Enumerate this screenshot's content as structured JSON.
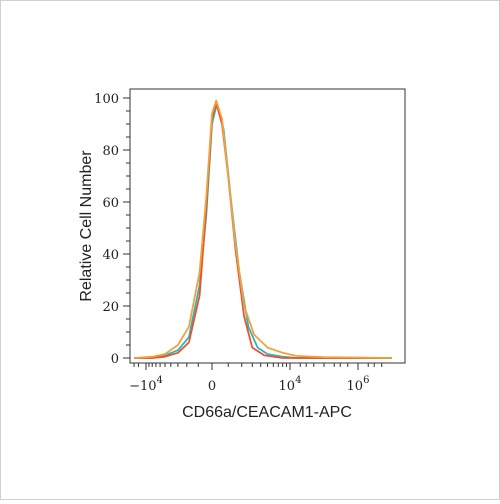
{
  "chart_data": {
    "type": "line",
    "title": "",
    "xlabel": "CD66a/CEACAM1-APC",
    "ylabel": "Relative Cell Number",
    "x_scale": "biexponential",
    "xlim": [
      -30000,
      10000000
    ],
    "ylim": [
      0,
      100
    ],
    "grid": false,
    "legend": "none",
    "x_ticks": [
      {
        "value": -10000,
        "base": "−10",
        "exp": "4"
      },
      {
        "value": 0,
        "base": "0",
        "exp": ""
      },
      {
        "value": 10000,
        "base": "10",
        "exp": "4"
      },
      {
        "value": 1000000,
        "base": "10",
        "exp": "6"
      }
    ],
    "y_ticks": [
      0,
      20,
      40,
      60,
      80,
      100
    ],
    "series": [
      {
        "color": "#2bb3c9",
        "points": [
          [
            -30000,
            0
          ],
          [
            -8000,
            0
          ],
          [
            -5000,
            1
          ],
          [
            -3000,
            3
          ],
          [
            -1800,
            8
          ],
          [
            -900,
            28
          ],
          [
            -400,
            55
          ],
          [
            0,
            90
          ],
          [
            300,
            98
          ],
          [
            700,
            88
          ],
          [
            1200,
            60
          ],
          [
            1800,
            33
          ],
          [
            2600,
            12
          ],
          [
            3600,
            4
          ],
          [
            5000,
            1.5
          ],
          [
            8000,
            0.5
          ],
          [
            15000,
            0
          ],
          [
            100000,
            0
          ],
          [
            10000000,
            0
          ]
        ]
      },
      {
        "color": "#e4572e",
        "points": [
          [
            -30000,
            0
          ],
          [
            -8000,
            0
          ],
          [
            -5000,
            0.5
          ],
          [
            -3000,
            2
          ],
          [
            -1800,
            6
          ],
          [
            -900,
            24
          ],
          [
            -400,
            58
          ],
          [
            0,
            92
          ],
          [
            250,
            98
          ],
          [
            600,
            90
          ],
          [
            1000,
            70
          ],
          [
            1500,
            42
          ],
          [
            2200,
            16
          ],
          [
            3000,
            4
          ],
          [
            4500,
            1
          ],
          [
            8000,
            0
          ],
          [
            100000,
            0
          ],
          [
            10000000,
            0
          ]
        ]
      },
      {
        "color": "#f2a23a",
        "points": [
          [
            -30000,
            0
          ],
          [
            -8000,
            0.5
          ],
          [
            -5000,
            1.5
          ],
          [
            -3000,
            5
          ],
          [
            -1800,
            12
          ],
          [
            -900,
            33
          ],
          [
            -400,
            62
          ],
          [
            0,
            94
          ],
          [
            250,
            99
          ],
          [
            600,
            92
          ],
          [
            1000,
            70
          ],
          [
            1500,
            44
          ],
          [
            2200,
            20
          ],
          [
            3200,
            9
          ],
          [
            5000,
            4
          ],
          [
            8000,
            2
          ],
          [
            15000,
            0.8
          ],
          [
            100000,
            0.3
          ],
          [
            1000000,
            0.2
          ],
          [
            10000000,
            0
          ]
        ]
      }
    ]
  }
}
